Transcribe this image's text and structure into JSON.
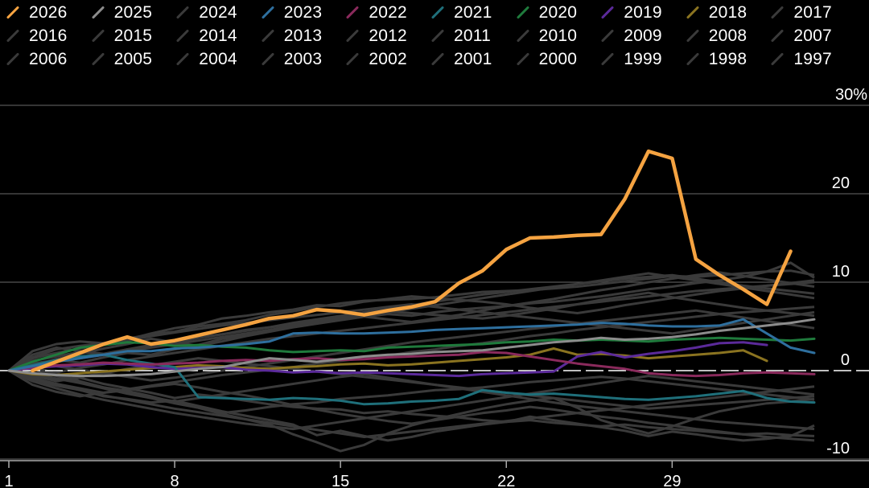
{
  "chart_data": {
    "type": "line",
    "title": "",
    "xlabel": "",
    "ylabel": "",
    "xlim": [
      1,
      35
    ],
    "ylim": [
      -10,
      30
    ],
    "x_ticks": [
      1,
      8,
      15,
      22,
      29
    ],
    "y_ticks": [
      {
        "value": 30,
        "label": "30%"
      },
      {
        "value": 20,
        "label": "20"
      },
      {
        "value": 10,
        "label": "10"
      },
      {
        "value": 0,
        "label": "0"
      },
      {
        "value": -10,
        "label": "-10"
      }
    ],
    "grid": "horizontal",
    "legend_position": "top",
    "zero_line_dashed": true,
    "colors": {
      "2026": "#f5a341",
      "2025": "#8c8c8c",
      "2023": "#2e6f9e",
      "2022": "#8a2a5c",
      "2021": "#1f6f7a",
      "2020": "#1f7a3c",
      "2019": "#5b2a9a",
      "2018": "#8a7320",
      "other": "#3a3a3a"
    },
    "legend": [
      "2026",
      "2025",
      "2024",
      "2023",
      "2022",
      "2021",
      "2020",
      "2019",
      "2018",
      "2017",
      "2016",
      "2015",
      "2014",
      "2013",
      "2012",
      "2011",
      "2010",
      "2009",
      "2008",
      "2007",
      "2006",
      "2005",
      "2004",
      "2003",
      "2002",
      "2001",
      "2000",
      "1999",
      "1998",
      "1997"
    ],
    "highlight_series": [
      {
        "name": "2026",
        "x_start": 2,
        "values": [
          0,
          1,
          2,
          3,
          3.8,
          3,
          3.4,
          4,
          4.6,
          5.2,
          5.9,
          6.2,
          6.9,
          6.7,
          6.3,
          6.8,
          7.2,
          7.8,
          9.9,
          11.3,
          13.7,
          15,
          15.1,
          15.3,
          15.4,
          19.4,
          24.8,
          24,
          12.6,
          10.8,
          9.2,
          7.5,
          13.5
        ]
      },
      {
        "name": "2025",
        "x_start": 1,
        "values": [
          0,
          -0.3,
          -0.5,
          -0.6,
          -0.6,
          -0.5,
          -0.4,
          -0.1,
          0.2,
          0.4,
          0.9,
          1.4,
          1.2,
          1,
          1.3,
          1.6,
          1.8,
          1.9,
          2.1,
          2.2,
          2.3,
          2.6,
          2.9,
          3.2,
          3.4,
          3.7,
          3.5,
          3.6,
          3.8,
          4.1,
          4.5,
          4.8,
          5.1,
          5.4,
          5.8
        ]
      },
      {
        "name": "2023",
        "x_start": 1,
        "values": [
          0,
          0.5,
          1,
          1.4,
          1.8,
          2.2,
          2.2,
          2.5,
          2.6,
          2.8,
          3,
          3.3,
          4.2,
          4.3,
          4.2,
          4.2,
          4.3,
          4.4,
          4.6,
          4.7,
          4.8,
          4.9,
          5,
          5.1,
          5.2,
          5.4,
          5.3,
          5.1,
          5,
          5,
          5.1,
          5.8,
          4.2,
          2.6,
          2
        ]
      },
      {
        "name": "2022",
        "x_start": 1,
        "values": [
          0,
          0.4,
          0.6,
          0.7,
          0.9,
          0.8,
          0.7,
          0.8,
          0.9,
          1.1,
          1.2,
          1.1,
          1.3,
          1.4,
          1.2,
          1.3,
          1.5,
          1.6,
          1.7,
          1.8,
          2.1,
          2,
          1.6,
          1.2,
          0.8,
          0.5,
          0.2,
          -0.3,
          -0.5,
          -0.6,
          -0.5,
          -0.3,
          -0.2,
          -0.3,
          -0.4
        ]
      },
      {
        "name": "2021",
        "x_start": 1,
        "values": [
          0,
          0.6,
          1.2,
          1.6,
          1.8,
          1.2,
          0.8,
          0.4,
          -3,
          -3.1,
          -3.2,
          -3.3,
          -3.1,
          -3.2,
          -3.4,
          -3.8,
          -3.7,
          -3.5,
          -3.4,
          -3.2,
          -2.2,
          -2.5,
          -2.7,
          -2.6,
          -2.8,
          -3,
          -3.2,
          -3.3,
          -3.1,
          -2.9,
          -2.6,
          -2.3,
          -3.1,
          -3.5,
          -3.6
        ]
      },
      {
        "name": "2020",
        "x_start": 1,
        "values": [
          0,
          1,
          1.8,
          2.6,
          2.9,
          3.2,
          3.1,
          2.8,
          2.9,
          2.7,
          2.6,
          2.3,
          2.1,
          2.2,
          2.3,
          2.2,
          2.6,
          2.7,
          2.8,
          2.9,
          3,
          3.2,
          3.3,
          3.5,
          3.4,
          3.5,
          3.4,
          3.3,
          3.5,
          3.6,
          3.7,
          3.6,
          3.5,
          3.4,
          3.6
        ]
      },
      {
        "name": "2019",
        "x_start": 1,
        "values": [
          0,
          0.3,
          0.5,
          0.6,
          0.8,
          0.7,
          0.4,
          0.2,
          0.3,
          0.4,
          0.1,
          0,
          -0.2,
          -0.1,
          -0.3,
          -0.2,
          -0.3,
          -0.4,
          -0.5,
          -0.6,
          -0.4,
          -0.3,
          -0.2,
          -0.1,
          1.6,
          2.1,
          1.5,
          1.9,
          2.2,
          2.6,
          3.1,
          3.2,
          2.9
        ]
      },
      {
        "name": "2018",
        "x_start": 1,
        "values": [
          0,
          -0.4,
          -0.5,
          -0.3,
          -0.1,
          0.1,
          0.3,
          0.4,
          0.6,
          0.5,
          0.3,
          0.2,
          0.4,
          0.5,
          0.7,
          0.8,
          0.6,
          0.7,
          0.9,
          1.1,
          1.3,
          1.5,
          1.8,
          2.5,
          1.8,
          1.9,
          1.7,
          1.4,
          1.6,
          1.8,
          2,
          2.3,
          1.1
        ]
      }
    ],
    "background_series": [
      {
        "name": "other",
        "values": [
          0,
          -0.5,
          -1.2,
          -0.8,
          -1.5,
          -2,
          -2.5,
          -3.1,
          -2.7,
          -3,
          -3.4,
          -3.8,
          -4.1,
          -4.3,
          -4.4,
          -4.8,
          -4.6,
          -4.9,
          -5.1,
          -5.3,
          -5.6,
          -5.8,
          -5.6,
          -5.9,
          -6.1,
          -6.3,
          -6.1,
          -6.4,
          -6.6,
          -6.8,
          -7,
          -7.2,
          -7.1,
          -7.3,
          -7.4
        ]
      },
      {
        "name": "other",
        "values": [
          0,
          1.5,
          2.4,
          2.8,
          3.1,
          3.6,
          4.1,
          4.4,
          5,
          5.3,
          5.7,
          6.3,
          6.7,
          7.2,
          7.6,
          7.9,
          8,
          8.1,
          8.3,
          8.6,
          8.9,
          9,
          9.1,
          9.3,
          9.5,
          9.8,
          10.1,
          10.4,
          10.7,
          10.6,
          10.8,
          11,
          11.2,
          11.3,
          10.8
        ]
      },
      {
        "name": "other",
        "values": [
          0,
          0.8,
          1.2,
          0.9,
          1.5,
          2,
          1.8,
          2.4,
          2.9,
          3.6,
          4,
          4.5,
          5.1,
          5.5,
          5.8,
          6.1,
          6.4,
          6.2,
          6.6,
          6.9,
          7.1,
          7.3,
          7.6,
          7.8,
          8.1,
          8.4,
          8.8,
          9.2,
          9.5,
          9.9,
          10.2,
          10.6,
          11.2,
          12.2,
          10.5
        ]
      },
      {
        "name": "other",
        "values": [
          0,
          -1.1,
          -1.7,
          -2.2,
          -2.9,
          -3.2,
          -3.6,
          -3.4,
          -4,
          -4.6,
          -5.1,
          -5.6,
          -6.1,
          -7.3,
          -6.8,
          -7.4,
          -7.9,
          -7.5,
          -6.9,
          -6.5,
          -6.1,
          -5.8,
          -5.2,
          -5.6,
          -6,
          -6.4,
          -6.8,
          -7.4,
          -6.9,
          -7.2,
          -7.6,
          -7.9,
          -7.7,
          -7.4,
          -6.2
        ]
      },
      {
        "name": "other",
        "values": [
          0,
          0.4,
          -0.3,
          -1.2,
          -1.9,
          -2.3,
          -2.9,
          -3.6,
          -4.2,
          -4.9,
          -5.5,
          -6.1,
          -7.2,
          -8.1,
          -9.1,
          -8.4,
          -7.1,
          -6.2,
          -5.5,
          -4.9,
          -4.3,
          -3.8,
          -3.4,
          -3.1,
          -4.2,
          -5.6,
          -6.4,
          -7.1,
          -6.3,
          -5.4,
          -4.6,
          -4.1,
          -3.7,
          -3.5,
          -3.2
        ]
      },
      {
        "name": "other",
        "values": [
          0,
          2.2,
          3,
          3.3,
          3.1,
          3.5,
          4.2,
          4.8,
          5.2,
          5.9,
          6.2,
          6.6,
          6.9,
          7.4,
          7.3,
          7.8,
          8.1,
          8.4,
          8.2,
          8,
          7.8,
          7.5,
          7.1,
          6.8,
          6.5,
          6.9,
          7.4,
          7.8,
          8.2,
          8.6,
          9,
          9.3,
          9.6,
          9.9,
          10.2
        ]
      },
      {
        "name": "other",
        "values": [
          0,
          -0.3,
          -0.9,
          -1.4,
          -2,
          -2.6,
          -3.1,
          -3.7,
          -4.2,
          -4.8,
          -4.5,
          -4.1,
          -3.8,
          -3.6,
          -3.2,
          -3,
          -2.8,
          -2.5,
          -2.2,
          -2.1,
          -1.9,
          -1.6,
          -1.3,
          -1.1,
          -0.9,
          -0.7,
          -0.9,
          -1.2,
          -1.5,
          -1.8,
          -2.1,
          -2.4,
          -2.7,
          -3,
          -3.3
        ]
      },
      {
        "name": "other",
        "values": [
          0,
          1.1,
          1.6,
          2.1,
          1.8,
          2.4,
          2.9,
          3.3,
          3.8,
          4.1,
          4.6,
          4.9,
          5.2,
          5.6,
          6,
          6.4,
          6.7,
          6.5,
          6.3,
          6.1,
          5.9,
          6.2,
          6.6,
          7,
          7.5,
          8,
          8.4,
          8.8,
          8.3,
          7.9,
          7.5,
          7.1,
          6.8,
          6.5,
          6.2
        ]
      },
      {
        "name": "other",
        "values": [
          0,
          -0.8,
          -1.5,
          -2,
          -2.5,
          -2.2,
          -1.8,
          -1.5,
          -1.9,
          -2.4,
          -2.8,
          -3.3,
          -3.9,
          -4.4,
          -4.9,
          -5.3,
          -5.7,
          -6,
          -5.6,
          -5.2,
          -4.8,
          -4.5,
          -4.1,
          -4.4,
          -4.8,
          -5.2,
          -5.5,
          -5.9,
          -6.2,
          -6.6,
          -6.9,
          -7.2,
          -7.5,
          -7.7,
          -7.9
        ]
      },
      {
        "name": "other",
        "values": [
          0,
          0.6,
          1.3,
          1.9,
          2.5,
          3,
          3.6,
          3.2,
          2.8,
          3.3,
          3.9,
          4.4,
          4.9,
          5.3,
          5.7,
          6.1,
          5.8,
          5.5,
          5.9,
          6.3,
          6.8,
          7.3,
          7.7,
          8.1,
          8.6,
          9.1,
          9.5,
          10,
          10.4,
          10.8,
          11.1,
          10.7,
          10.3,
          9.9,
          9.5
        ]
      },
      {
        "name": "other",
        "values": [
          0,
          -1.6,
          -2.4,
          -2.9,
          -2.5,
          -2.1,
          -1.7,
          -1.3,
          -0.9,
          -0.5,
          -0.2,
          0.1,
          0.4,
          0.8,
          1.1,
          1.4,
          1.7,
          2.1,
          2.4,
          2.8,
          3.1,
          3.5,
          3.9,
          4.2,
          4.6,
          4.9,
          5.2,
          5.5,
          5.8,
          6.1,
          6.4,
          6.6,
          6.8,
          7,
          7.2
        ]
      },
      {
        "name": "other",
        "values": [
          0,
          0.2,
          -0.6,
          -1.3,
          -1.9,
          -2.5,
          -3,
          -3.5,
          -3.1,
          -2.7,
          -2.3,
          -1.9,
          -1.5,
          -1.1,
          -0.7,
          -0.4,
          -0.8,
          -1.2,
          -1.6,
          -2,
          -2.4,
          -2.8,
          -3.2,
          -3.6,
          -4,
          -4.3,
          -4.6,
          -4.9,
          -5.2,
          -5.5,
          -5.8,
          -6,
          -6.2,
          -6.4,
          -6.6
        ]
      },
      {
        "name": "other",
        "values": [
          0,
          1.8,
          2.6,
          2.2,
          1.9,
          2.4,
          2.8,
          3.2,
          3.7,
          4.1,
          4.5,
          4.9,
          5.4,
          5.8,
          6.2,
          6.6,
          7,
          7.4,
          7.8,
          8.2,
          8.6,
          8.9,
          9.2,
          9.5,
          9.8,
          10.1,
          10.4,
          10.6,
          10.8,
          10.4,
          10,
          9.6,
          9.3,
          9,
          8.7
        ]
      },
      {
        "name": "other",
        "values": [
          0,
          -0.4,
          -0.2,
          0.3,
          0.7,
          1.2,
          1.6,
          2,
          2.4,
          2.8,
          3.2,
          3.6,
          3.9,
          4.2,
          4.5,
          4.8,
          5.1,
          5.4,
          5.7,
          6,
          6.3,
          6.6,
          6.9,
          7.2,
          7.5,
          7.8,
          8.1,
          8.4,
          8.7,
          9,
          9.2,
          9.4,
          9.6,
          9.8,
          10
        ]
      },
      {
        "name": "other",
        "values": [
          0,
          -1.2,
          -2,
          -2.7,
          -3.3,
          -3.8,
          -4.3,
          -4.8,
          -5.2,
          -5.6,
          -6,
          -6.3,
          -6.6,
          -6.2,
          -5.8,
          -5.4,
          -5,
          -4.6,
          -4.2,
          -3.8,
          -3.4,
          -3,
          -2.6,
          -2.2,
          -1.8,
          -1.4,
          -1,
          -0.6,
          -0.9,
          -1.2,
          -1.5,
          -1.8,
          -2.1,
          -2.4,
          -2.7
        ]
      },
      {
        "name": "other",
        "values": [
          0,
          0.9,
          0.5,
          0.1,
          -0.3,
          -0.7,
          -1.1,
          -0.8,
          -0.4,
          0,
          0.4,
          0.8,
          1.2,
          1.6,
          2,
          2.4,
          2.8,
          3.2,
          3.5,
          3.8,
          4.1,
          4.4,
          4.7,
          5,
          5.3,
          5.6,
          5.9,
          6.2,
          6.5,
          6.8,
          6.4,
          6,
          5.6,
          5.2,
          4.8
        ]
      },
      {
        "name": "other",
        "values": [
          0,
          -0.6,
          -1.1,
          -0.7,
          -0.3,
          0.2,
          0.6,
          1,
          1.4,
          1.1,
          0.8,
          0.5,
          0.2,
          -0.1,
          -0.4,
          -0.7,
          -1,
          -1.3,
          -1.6,
          -1.9,
          -2.2,
          -2.5,
          -2.8,
          -3.1,
          -3.4,
          -3.7,
          -4,
          -4.3,
          -4.1,
          -3.9,
          -3.7,
          -3.5,
          -3.3,
          -3.1,
          -2.9
        ]
      },
      {
        "name": "other",
        "values": [
          0,
          1.4,
          2,
          2.5,
          3,
          3.4,
          3.9,
          4.3,
          4.7,
          5.1,
          5.4,
          5.7,
          6,
          6.3,
          6.6,
          6.9,
          7.2,
          7.5,
          7.2,
          6.9,
          6.6,
          6.3,
          6,
          5.7,
          5.4,
          5.1,
          4.8,
          4.5,
          4.2,
          4.6,
          5,
          5.4,
          5.8,
          6.2,
          6.6
        ]
      },
      {
        "name": "other",
        "values": [
          0,
          -0.9,
          -1.6,
          -2.2,
          -2.8,
          -3.3,
          -3.8,
          -4.3,
          -4.7,
          -5.1,
          -5.5,
          -5.9,
          -6.3,
          -6.7,
          -7.1,
          -7.5,
          -7.2,
          -6.9,
          -6.6,
          -6.3,
          -6,
          -5.7,
          -5.4,
          -5.1,
          -4.8,
          -4.5,
          -4.2,
          -3.9,
          -3.6,
          -3.3,
          -3,
          -2.7,
          -2.4,
          -2.1,
          -1.8
        ]
      },
      {
        "name": "other",
        "values": [
          0,
          0.5,
          1,
          1.4,
          1.8,
          2.2,
          2.6,
          3,
          3.4,
          3.8,
          4.2,
          4.6,
          5,
          5.4,
          5.8,
          6.2,
          6.6,
          7,
          7.4,
          7.8,
          8.2,
          8.6,
          9,
          9.4,
          9.8,
          10.2,
          10.6,
          11,
          10.6,
          10.2,
          9.8,
          9.4,
          9,
          8.6,
          8.2
        ]
      }
    ]
  }
}
